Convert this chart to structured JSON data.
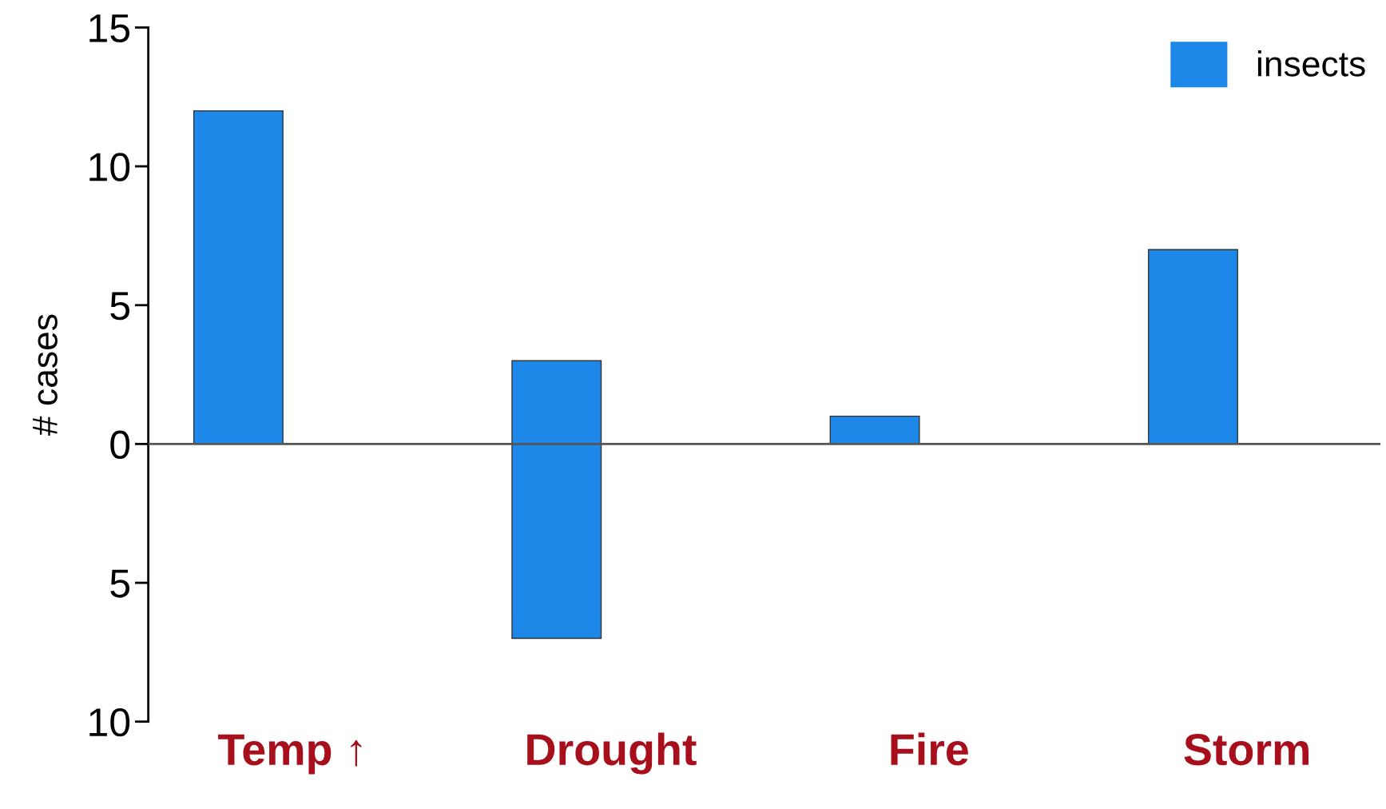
{
  "chart_data": {
    "type": "bar",
    "ylabel": "# cases",
    "categories": [
      "Temp ↑",
      "Drought",
      "Fire",
      "Storm"
    ],
    "series": [
      {
        "name": "insects",
        "color": "#1e88e8",
        "values": [
          12,
          10,
          1,
          7
        ],
        "base": [
          0,
          -7,
          0,
          0
        ]
      }
    ],
    "ylim": [
      -10,
      15
    ],
    "yticks": [
      15,
      10,
      5,
      0,
      {
        "value": -5,
        "label": "5"
      },
      {
        "value": -10,
        "label": "10"
      }
    ],
    "ref_lines": [
      {
        "axis": "y",
        "value": 0,
        "color": "#555555"
      }
    ],
    "grid": false,
    "legend": "top right"
  }
}
